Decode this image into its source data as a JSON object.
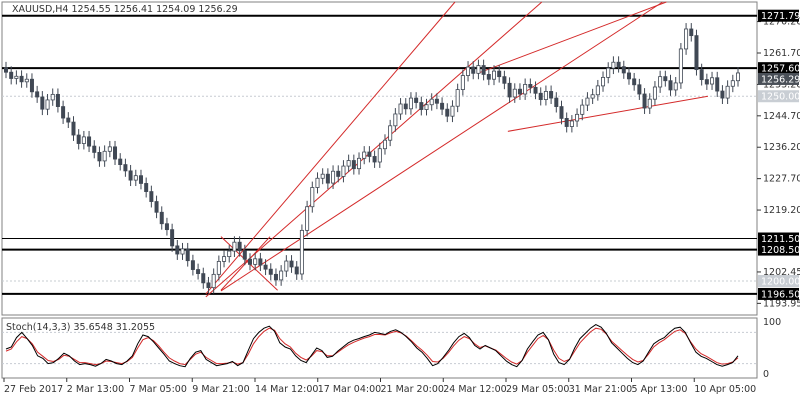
{
  "header": {
    "symbol_line": "XAUUSD,H4  1254.55 1256.41 1254.09 1256.29"
  },
  "stoch_label": "Stoch(14,3,3) 35.6548 31.2055",
  "colors": {
    "candle": "#404854",
    "channel": "#d42a2a",
    "level": "#000000",
    "stoch_main": "#000000",
    "stoch_signal": "#d42a2a",
    "tag_dark": "#000000",
    "tag_grey": "#c9ced4",
    "grid": "#c7ccd2"
  },
  "chart_data": {
    "type": "line",
    "title": "",
    "ylim": [
      1190.8,
      1275.5
    ],
    "price_ticks": [
      "1270.20",
      "1261.70",
      "1253.20",
      "1244.70",
      "1236.20",
      "1227.70",
      "1219.20",
      "1202.45",
      "1193.95"
    ],
    "date_labels": [
      "27 Feb 2017",
      "2 Mar 13:00",
      "7 Mar 05:00",
      "9 Mar 21:00",
      "14 Mar 12:00",
      "17 Mar 04:00",
      "21 Mar 20:00",
      "24 Mar 12:00",
      "29 Mar 05:00",
      "31 Mar 21:00",
      "5 Apr 13:00",
      "10 Apr 05:00"
    ],
    "close_series": [
      1256.5,
      1254.8,
      1255.4,
      1253.9,
      1254.6,
      1251.2,
      1249.8,
      1246.5,
      1249.0,
      1250.5,
      1247.2,
      1244.1,
      1243.0,
      1239.5,
      1237.2,
      1239.0,
      1236.5,
      1234.8,
      1232.5,
      1235.1,
      1236.3,
      1233.0,
      1231.5,
      1229.8,
      1227.3,
      1228.5,
      1226.4,
      1224.2,
      1221.5,
      1218.6,
      1215.5,
      1213.9,
      1209.5,
      1207.3,
      1208.7,
      1205.5,
      1203.1,
      1202.0,
      1199.5,
      1198.2,
      1201.8,
      1205.3,
      1206.6,
      1208.1,
      1210.5,
      1208.2,
      1205.9,
      1204.5,
      1206.0,
      1204.3,
      1203.2,
      1201.8,
      1200.3,
      1202.7,
      1205.4,
      1203.8,
      1201.9,
      1213.7,
      1220.1,
      1225.3,
      1227.8,
      1228.9,
      1226.5,
      1229.7,
      1228.3,
      1231.1,
      1232.6,
      1230.4,
      1233.2,
      1234.9,
      1233.7,
      1232.2,
      1235.8,
      1238.1,
      1242.0,
      1245.2,
      1247.9,
      1246.6,
      1249.5,
      1248.3,
      1246.4,
      1247.7,
      1249.2,
      1248.1,
      1246.5,
      1244.6,
      1247.3,
      1251.8,
      1255.6,
      1257.9,
      1256.2,
      1258.3,
      1255.9,
      1254.6,
      1256.8,
      1255.3,
      1253.5,
      1249.8,
      1251.9,
      1250.6,
      1253.2,
      1252.4,
      1250.8,
      1249.1,
      1251.3,
      1249.5,
      1247.2,
      1244.0,
      1241.8,
      1243.3,
      1245.1,
      1247.6,
      1249.5,
      1250.4,
      1252.8,
      1255.1,
      1257.6,
      1259.2,
      1258.0,
      1256.3,
      1254.7,
      1253.1,
      1250.6,
      1246.8,
      1249.2,
      1252.5,
      1255.3,
      1254.2,
      1251.7,
      1253.6,
      1262.8,
      1268.2,
      1266.4,
      1257.2,
      1254.5,
      1253.3,
      1255.0,
      1251.4,
      1249.5,
      1252.7,
      1254.2,
      1256.3
    ],
    "channel_lines": [
      {
        "x": [
          0.27,
          0.715
        ],
        "y": [
          1195.7,
          1275.5
        ]
      },
      {
        "x": [
          0.29,
          0.875
        ],
        "y": [
          1197.3,
          1275.5
        ]
      },
      {
        "x": [
          0.27,
          0.6
        ],
        "y": [
          1196.5,
          1275.5
        ]
      },
      {
        "x": [
          0.63,
          0.88
        ],
        "y": [
          1256.2,
          1275.5
        ]
      },
      {
        "x": [
          0.67,
          0.935
        ],
        "y": [
          1240.5,
          1250.0
        ]
      },
      {
        "x": [
          0.29,
          0.355
        ],
        "y": [
          1197.5,
          1212.0
        ]
      },
      {
        "x": [
          0.29,
          0.365
        ],
        "y": [
          1212.0,
          1197.5
        ]
      }
    ],
    "levels": [
      {
        "label": "1271.79",
        "value": 1271.79,
        "style": "bold"
      },
      {
        "label": "1257.60",
        "value": 1257.6,
        "style": "bold"
      },
      {
        "label": "1250.00",
        "value": 1250.0,
        "style": "dotted"
      },
      {
        "label": "1211.50",
        "value": 1211.5,
        "style": "thin"
      },
      {
        "label": "1208.50",
        "value": 1208.5,
        "style": "bold"
      },
      {
        "label": "1200.00",
        "value": 1200.0,
        "style": "dotted"
      },
      {
        "label": "1196.50",
        "value": 1196.5,
        "style": "bold"
      }
    ],
    "current_price_label": "1256.29",
    "stoch": {
      "ylim": [
        0,
        100
      ],
      "ticks": [
        "100",
        "0"
      ],
      "main": [
        48,
        52,
        70,
        80,
        68,
        55,
        35,
        30,
        20,
        22,
        30,
        40,
        35,
        25,
        18,
        20,
        18,
        15,
        20,
        28,
        25,
        20,
        18,
        25,
        35,
        58,
        75,
        72,
        62,
        50,
        38,
        25,
        20,
        16,
        14,
        30,
        42,
        45,
        28,
        22,
        16,
        18,
        20,
        24,
        16,
        22,
        45,
        68,
        80,
        88,
        92,
        82,
        60,
        52,
        48,
        35,
        26,
        22,
        36,
        50,
        45,
        32,
        34,
        44,
        52,
        60,
        65,
        68,
        72,
        75,
        80,
        78,
        76,
        82,
        85,
        80,
        72,
        62,
        50,
        42,
        30,
        16,
        20,
        32,
        45,
        60,
        72,
        78,
        70,
        55,
        48,
        55,
        50,
        45,
        35,
        25,
        18,
        14,
        26,
        48,
        62,
        75,
        80,
        66,
        38,
        22,
        18,
        28,
        50,
        68,
        78,
        88,
        95,
        90,
        78,
        60,
        50,
        40,
        30,
        22,
        18,
        25,
        42,
        58,
        65,
        70,
        80,
        88,
        90,
        80,
        60,
        42,
        34,
        30,
        24,
        18,
        15,
        18,
        22,
        35
      ],
      "signal": [
        44,
        48,
        62,
        72,
        68,
        58,
        42,
        34,
        26,
        24,
        28,
        36,
        34,
        28,
        22,
        22,
        20,
        18,
        20,
        25,
        24,
        22,
        20,
        24,
        32,
        50,
        66,
        70,
        64,
        54,
        42,
        31,
        25,
        20,
        18,
        28,
        38,
        42,
        32,
        26,
        20,
        20,
        21,
        23,
        19,
        22,
        38,
        58,
        72,
        82,
        88,
        84,
        68,
        58,
        52,
        40,
        32,
        27,
        34,
        45,
        43,
        35,
        35,
        42,
        49,
        56,
        61,
        65,
        69,
        72,
        76,
        76,
        75,
        79,
        82,
        79,
        73,
        64,
        54,
        46,
        36,
        24,
        23,
        30,
        41,
        54,
        65,
        72,
        68,
        58,
        51,
        54,
        50,
        46,
        38,
        30,
        23,
        19,
        26,
        42,
        55,
        68,
        74,
        66,
        46,
        30,
        24,
        28,
        44,
        60,
        71,
        81,
        88,
        86,
        77,
        63,
        54,
        45,
        36,
        28,
        23,
        26,
        38,
        52,
        60,
        66,
        74,
        82,
        85,
        78,
        62,
        48,
        39,
        34,
        28,
        22,
        19,
        20,
        23,
        31
      ]
    }
  }
}
